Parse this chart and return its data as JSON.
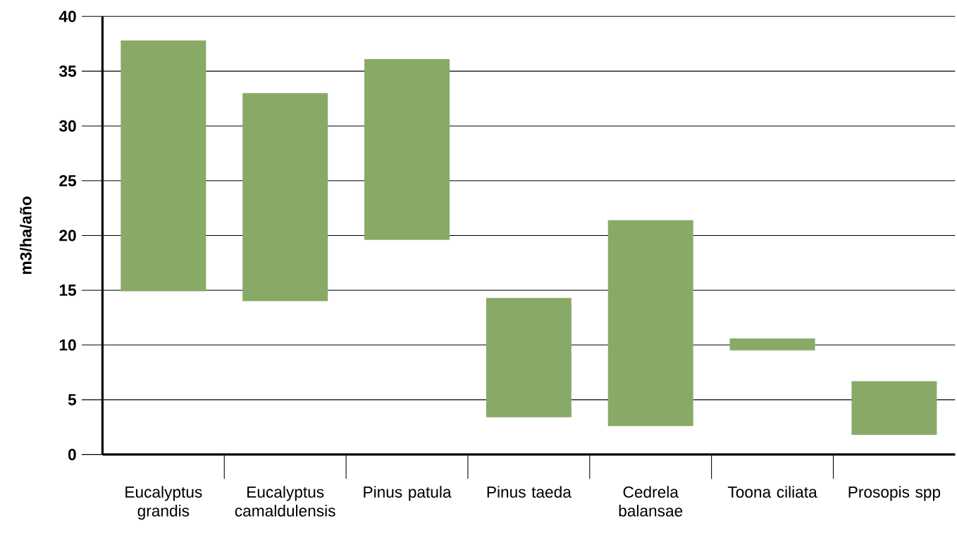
{
  "chart_data": {
    "type": "bar",
    "ylabel": "m3/ha/año",
    "categories": [
      "Eucalyptus grandis",
      "Eucalyptus camaldulensis",
      "Pinus patula",
      "Pinus taeda",
      "Cedrela balansae",
      "Toona ciliata",
      "Prosopis spp"
    ],
    "base": [
      14.9,
      14.0,
      19.6,
      3.4,
      2.6,
      9.5,
      1.8
    ],
    "values": [
      22.9,
      19.0,
      16.5,
      10.9,
      18.8,
      1.1,
      4.9
    ],
    "color": "#88aa66",
    "ylim": [
      0,
      40
    ],
    "yticks": [
      0,
      5,
      10,
      15,
      20,
      25,
      30,
      35,
      40
    ],
    "grid": "y"
  }
}
